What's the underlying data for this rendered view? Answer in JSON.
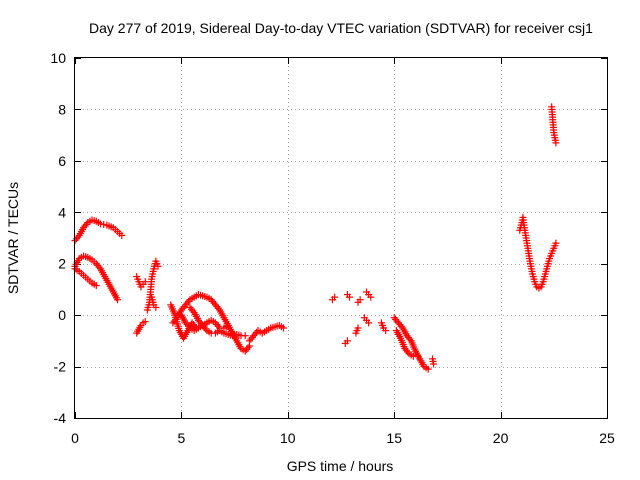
{
  "chart_data": {
    "type": "scatter",
    "title": "Day 277 of 2019, Sidereal Day-to-day VTEC variation (SDTVAR) for receiver csj1",
    "xlabel": "GPS time / hours",
    "ylabel": "SDTVAR / TECUs",
    "xlim": [
      0,
      25
    ],
    "ylim": [
      -4,
      10
    ],
    "xticks": [
      "0",
      "5",
      "10",
      "15",
      "20",
      "25"
    ],
    "yticks": [
      "-4",
      "-2",
      "0",
      "2",
      "4",
      "6",
      "8",
      "10"
    ],
    "grid": true,
    "marker": "plus",
    "color": "#ff0000",
    "segments": [
      [
        [
          0.0,
          2.9
        ],
        [
          0.2,
          3.1
        ],
        [
          0.4,
          3.4
        ],
        [
          0.6,
          3.6
        ],
        [
          0.8,
          3.7
        ],
        [
          1.0,
          3.65
        ],
        [
          1.2,
          3.55
        ],
        [
          1.5,
          3.5
        ],
        [
          1.8,
          3.4
        ],
        [
          2.0,
          3.25
        ],
        [
          2.2,
          3.1
        ]
      ],
      [
        [
          0.0,
          1.9
        ],
        [
          0.2,
          2.2
        ],
        [
          0.4,
          2.3
        ],
        [
          0.6,
          2.25
        ],
        [
          0.8,
          2.15
        ],
        [
          1.0,
          2.0
        ],
        [
          1.2,
          1.8
        ],
        [
          1.4,
          1.5
        ],
        [
          1.6,
          1.2
        ],
        [
          1.8,
          0.9
        ],
        [
          2.0,
          0.6
        ]
      ],
      [
        [
          0.0,
          1.8
        ],
        [
          0.2,
          1.7
        ],
        [
          0.4,
          1.55
        ],
        [
          0.6,
          1.4
        ],
        [
          0.8,
          1.25
        ],
        [
          1.0,
          1.15
        ]
      ],
      [
        [
          2.9,
          -0.7
        ],
        [
          3.0,
          -0.55
        ],
        [
          3.1,
          -0.4
        ],
        [
          3.2,
          -0.3
        ],
        [
          3.3,
          -0.25
        ]
      ],
      [
        [
          2.9,
          1.5
        ],
        [
          3.0,
          1.3
        ],
        [
          3.1,
          1.1
        ],
        [
          3.2,
          1.2
        ],
        [
          3.3,
          1.3
        ]
      ],
      [
        [
          3.4,
          0.2
        ],
        [
          3.5,
          0.5
        ],
        [
          3.55,
          0.9
        ],
        [
          3.6,
          1.4
        ],
        [
          3.7,
          1.8
        ],
        [
          3.8,
          2.1
        ],
        [
          3.9,
          1.9
        ]
      ],
      [
        [
          3.6,
          0.7
        ],
        [
          3.7,
          0.4
        ],
        [
          3.8,
          0.3
        ]
      ],
      [
        [
          4.5,
          0.4
        ],
        [
          4.7,
          0.0
        ],
        [
          4.9,
          -0.6
        ],
        [
          5.1,
          -0.9
        ],
        [
          5.3,
          -0.6
        ],
        [
          5.5,
          -0.3
        ],
        [
          5.7,
          -0.5
        ]
      ],
      [
        [
          4.6,
          -0.3
        ],
        [
          4.8,
          -0.1
        ],
        [
          5.0,
          0.2
        ],
        [
          5.2,
          0.4
        ],
        [
          5.4,
          0.6
        ],
        [
          5.6,
          0.7
        ],
        [
          5.8,
          0.8
        ],
        [
          6.0,
          0.75
        ],
        [
          6.2,
          0.7
        ],
        [
          6.4,
          0.6
        ],
        [
          6.6,
          0.4
        ],
        [
          6.8,
          0.2
        ],
        [
          7.0,
          -0.1
        ],
        [
          7.2,
          -0.4
        ],
        [
          7.4,
          -0.7
        ],
        [
          7.6,
          -1.0
        ],
        [
          7.8,
          -1.3
        ],
        [
          8.0,
          -1.4
        ],
        [
          8.2,
          -1.2
        ]
      ],
      [
        [
          5.0,
          0.0
        ],
        [
          5.2,
          -0.3
        ],
        [
          5.4,
          -0.5
        ],
        [
          5.6,
          -0.6
        ],
        [
          5.8,
          -0.5
        ],
        [
          6.0,
          -0.4
        ],
        [
          6.2,
          -0.6
        ],
        [
          6.4,
          -0.7
        ],
        [
          6.6,
          -0.7
        ],
        [
          6.8,
          -0.6
        ],
        [
          7.0,
          -0.7
        ],
        [
          7.2,
          -0.75
        ],
        [
          7.4,
          -0.8
        ],
        [
          7.6,
          -0.75
        ],
        [
          7.8,
          -0.8
        ],
        [
          8.0,
          -0.8
        ]
      ],
      [
        [
          5.4,
          0.3
        ],
        [
          5.6,
          0.1
        ],
        [
          5.8,
          -0.2
        ],
        [
          6.0,
          -0.4
        ],
        [
          6.2,
          -0.3
        ],
        [
          6.4,
          -0.2
        ],
        [
          6.6,
          -0.3
        ],
        [
          6.8,
          -0.5
        ],
        [
          7.0,
          -0.5
        ],
        [
          7.2,
          -0.4
        ]
      ],
      [
        [
          8.2,
          -1.0
        ],
        [
          8.4,
          -0.8
        ],
        [
          8.6,
          -0.6
        ],
        [
          8.8,
          -0.7
        ],
        [
          9.0,
          -0.6
        ],
        [
          9.2,
          -0.5
        ],
        [
          9.4,
          -0.45
        ],
        [
          9.6,
          -0.4
        ],
        [
          9.8,
          -0.5
        ]
      ],
      [
        [
          12.1,
          0.6
        ],
        [
          12.2,
          0.7
        ]
      ],
      [
        [
          12.7,
          -1.1
        ],
        [
          12.8,
          -1.0
        ]
      ],
      [
        [
          12.8,
          0.8
        ],
        [
          12.9,
          0.7
        ]
      ],
      [
        [
          13.2,
          -0.7
        ],
        [
          13.3,
          -0.5
        ]
      ],
      [
        [
          13.3,
          0.5
        ],
        [
          13.4,
          0.6
        ]
      ],
      [
        [
          13.6,
          -0.1
        ],
        [
          13.7,
          -0.2
        ],
        [
          13.8,
          -0.3
        ]
      ],
      [
        [
          13.7,
          0.9
        ],
        [
          13.8,
          0.8
        ],
        [
          13.9,
          0.7
        ]
      ],
      [
        [
          14.4,
          -0.3
        ],
        [
          14.5,
          -0.5
        ],
        [
          14.6,
          -0.6
        ]
      ],
      [
        [
          15.0,
          -0.1
        ],
        [
          15.2,
          -0.3
        ],
        [
          15.4,
          -0.5
        ],
        [
          15.6,
          -0.8
        ],
        [
          15.8,
          -1.0
        ],
        [
          16.0,
          -1.4
        ],
        [
          16.2,
          -1.7
        ],
        [
          16.4,
          -2.0
        ],
        [
          16.6,
          -2.1
        ]
      ],
      [
        [
          15.1,
          -0.6
        ],
        [
          15.3,
          -0.9
        ],
        [
          15.5,
          -1.3
        ],
        [
          15.7,
          -1.5
        ],
        [
          15.9,
          -1.6
        ],
        [
          16.1,
          -1.6
        ]
      ],
      [
        [
          16.8,
          -1.7
        ],
        [
          16.85,
          -1.9
        ]
      ],
      [
        [
          20.9,
          3.3
        ],
        [
          21.0,
          3.6
        ],
        [
          21.05,
          3.8
        ],
        [
          21.1,
          3.5
        ],
        [
          21.2,
          3.0
        ],
        [
          21.3,
          2.5
        ],
        [
          21.4,
          2.0
        ],
        [
          21.5,
          1.6
        ],
        [
          21.6,
          1.3
        ],
        [
          21.7,
          1.1
        ],
        [
          21.8,
          1.05
        ],
        [
          21.9,
          1.1
        ],
        [
          22.0,
          1.3
        ],
        [
          22.1,
          1.6
        ],
        [
          22.2,
          1.9
        ],
        [
          22.3,
          2.2
        ],
        [
          22.4,
          2.4
        ],
        [
          22.5,
          2.6
        ],
        [
          22.6,
          2.8
        ]
      ],
      [
        [
          22.4,
          8.1
        ],
        [
          22.45,
          7.6
        ],
        [
          22.5,
          7.1
        ],
        [
          22.6,
          6.7
        ]
      ]
    ]
  }
}
